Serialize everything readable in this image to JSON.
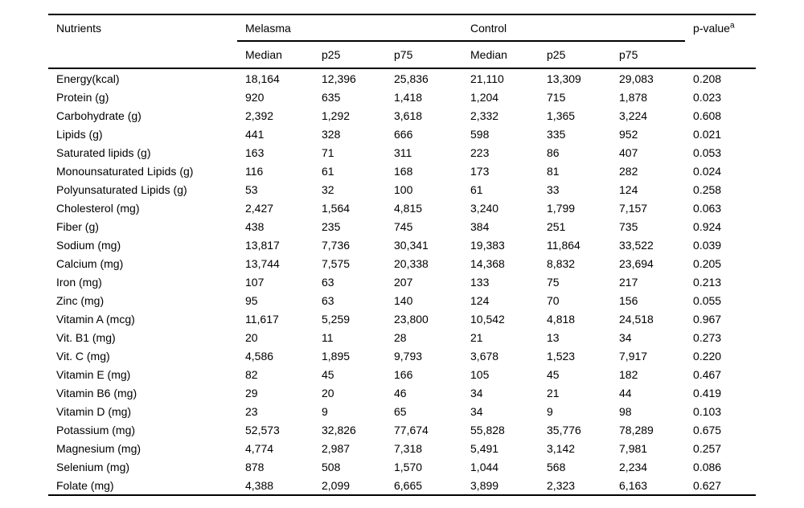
{
  "page": {
    "background_color": "#ffffff",
    "text_color": "#000000",
    "rule_color": "#000000"
  },
  "table": {
    "header": {
      "nutrients": "Nutrients",
      "group_melasma": "Melasma",
      "group_control": "Control",
      "p_value": "p-value",
      "p_value_sup": "a",
      "sub": [
        "Median",
        "p25",
        "p75",
        "Median",
        "p25",
        "p75"
      ]
    },
    "rows": [
      {
        "nutrient": "Energy(kcal)",
        "values": [
          "18,164",
          "12,396",
          "25,836",
          "21,110",
          "13,309",
          "29,083",
          "0.208"
        ]
      },
      {
        "nutrient": "Protein (g)",
        "values": [
          "920",
          "635",
          "1,418",
          "1,204",
          "715",
          "1,878",
          "0.023"
        ]
      },
      {
        "nutrient": "Carbohydrate (g)",
        "values": [
          "2,392",
          "1,292",
          "3,618",
          "2,332",
          "1,365",
          "3,224",
          "0.608"
        ]
      },
      {
        "nutrient": "Lipids (g)",
        "values": [
          "441",
          "328",
          "666",
          "598",
          "335",
          "952",
          "0.021"
        ]
      },
      {
        "nutrient": "Saturated lipids (g)",
        "values": [
          "163",
          "71",
          "311",
          "223",
          "86",
          "407",
          "0.053"
        ]
      },
      {
        "nutrient": "Monounsaturated Lipids (g)",
        "values": [
          "116",
          "61",
          "168",
          "173",
          "81",
          "282",
          "0.024"
        ]
      },
      {
        "nutrient": "Polyunsaturated Lipids (g)",
        "values": [
          "53",
          "32",
          "100",
          "61",
          "33",
          "124",
          "0.258"
        ]
      },
      {
        "nutrient": "Cholesterol (mg)",
        "values": [
          "2,427",
          "1,564",
          "4,815",
          "3,240",
          "1,799",
          "7,157",
          "0.063"
        ]
      },
      {
        "nutrient": "Fiber (g)",
        "values": [
          "438",
          "235",
          "745",
          "384",
          "251",
          "735",
          "0.924"
        ]
      },
      {
        "nutrient": "Sodium (mg)",
        "values": [
          "13,817",
          "7,736",
          "30,341",
          "19,383",
          "11,864",
          "33,522",
          "0.039"
        ]
      },
      {
        "nutrient": "Calcium (mg)",
        "values": [
          "13,744",
          "7,575",
          "20,338",
          "14,368",
          "8,832",
          "23,694",
          "0.205"
        ]
      },
      {
        "nutrient": "Iron (mg)",
        "values": [
          "107",
          "63",
          "207",
          "133",
          "75",
          "217",
          "0.213"
        ]
      },
      {
        "nutrient": "Zinc (mg)",
        "values": [
          "95",
          "63",
          "140",
          "124",
          "70",
          "156",
          "0.055"
        ]
      },
      {
        "nutrient": "Vitamin A (mcg)",
        "values": [
          "11,617",
          "5,259",
          "23,800",
          "10,542",
          "4,818",
          "24,518",
          "0.967"
        ]
      },
      {
        "nutrient": "Vit. B1 (mg)",
        "values": [
          "20",
          "11",
          "28",
          "21",
          "13",
          "34",
          "0.273"
        ]
      },
      {
        "nutrient": "Vit. C (mg)",
        "values": [
          "4,586",
          "1,895",
          "9,793",
          "3,678",
          "1,523",
          "7,917",
          "0.220"
        ]
      },
      {
        "nutrient": "Vitamin E (mg)",
        "values": [
          "82",
          "45",
          "166",
          "105",
          "45",
          "182",
          "0.467"
        ]
      },
      {
        "nutrient": "Vitamin B6 (mg)",
        "values": [
          "29",
          "20",
          "46",
          "34",
          "21",
          "44",
          "0.419"
        ]
      },
      {
        "nutrient": "Vitamin D (mg)",
        "values": [
          "23",
          "9",
          "65",
          "34",
          "9",
          "98",
          "0.103"
        ]
      },
      {
        "nutrient": "Potassium (mg)",
        "values": [
          "52,573",
          "32,826",
          "77,674",
          "55,828",
          "35,776",
          "78,289",
          "0.675"
        ]
      },
      {
        "nutrient": "Magnesium (mg)",
        "values": [
          "4,774",
          "2,987",
          "7,318",
          "5,491",
          "3,142",
          "7,981",
          "0.257"
        ]
      },
      {
        "nutrient": "Selenium (mg)",
        "values": [
          "878",
          "508",
          "1,570",
          "1,044",
          "568",
          "2,234",
          "0.086"
        ]
      },
      {
        "nutrient": "Folate (mg)",
        "values": [
          "4,388",
          "2,099",
          "6,665",
          "3,899",
          "2,323",
          "6,163",
          "0.627"
        ]
      }
    ]
  }
}
